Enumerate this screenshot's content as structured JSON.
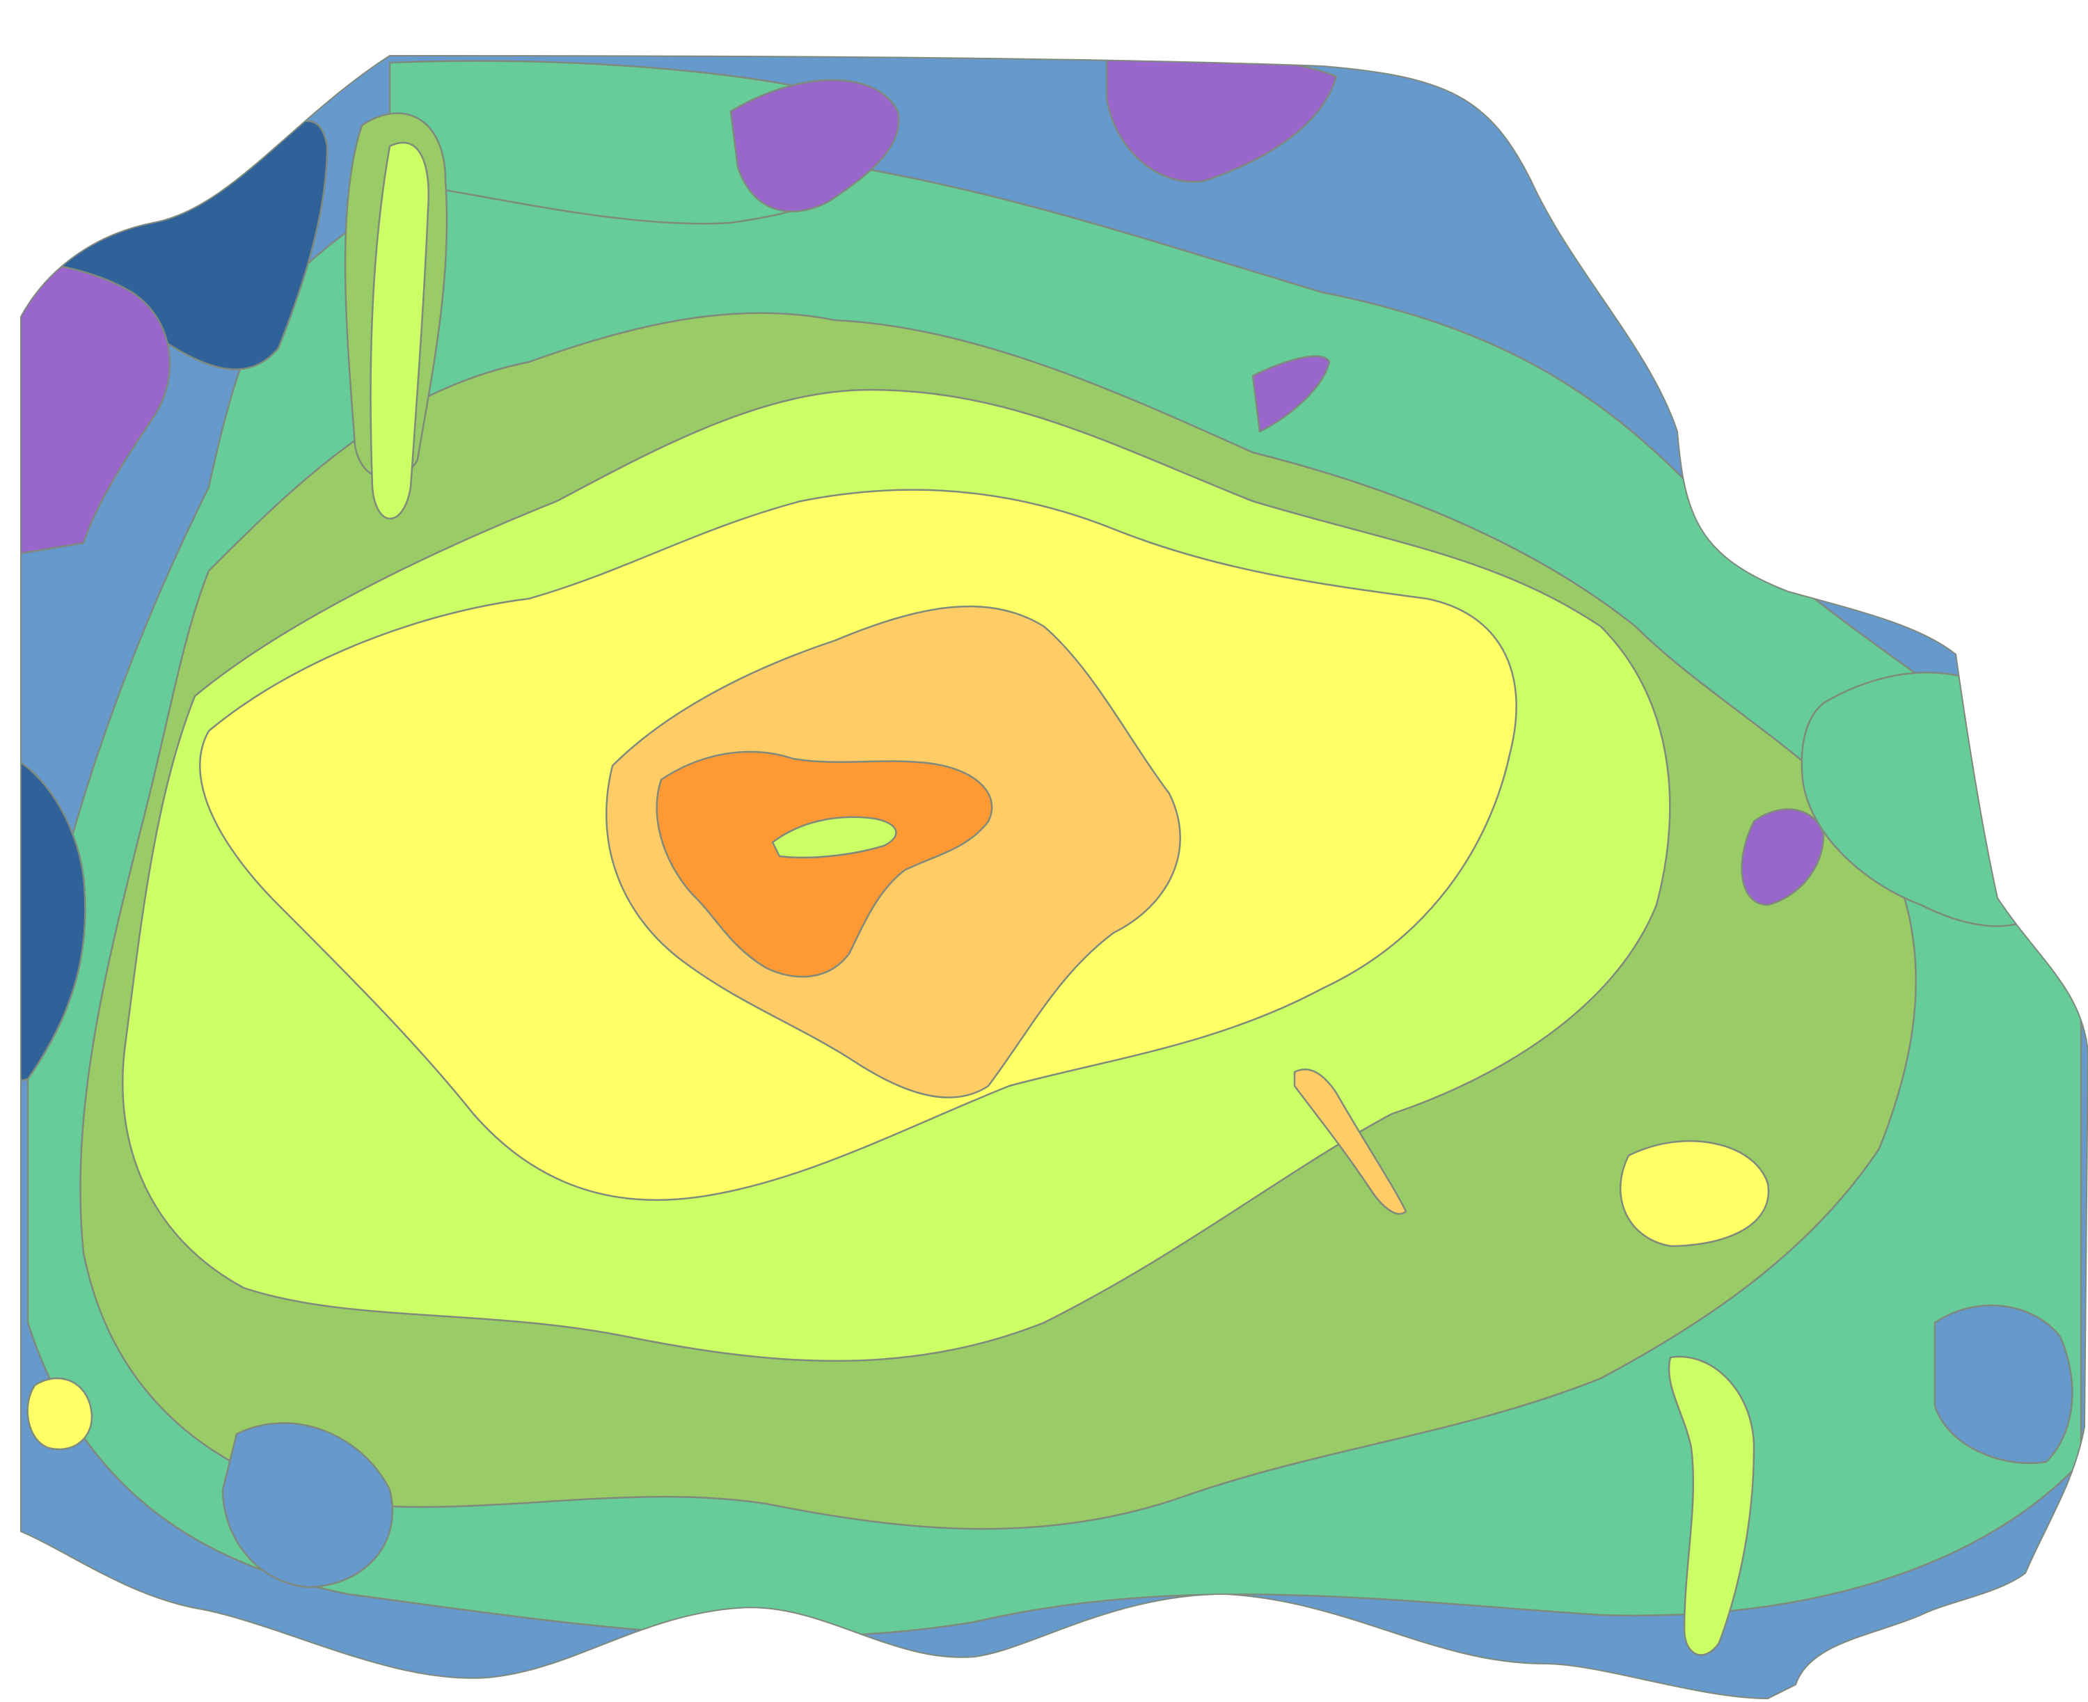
{
  "map": {
    "type": "isoline density map",
    "title": "",
    "legend": [],
    "palette": {
      "level_0": "#2f6299",
      "level_1": "#9966cc",
      "level_2": "#6699cc",
      "level_3": "#66cc99",
      "level_4": "#99cc66",
      "level_5": "#ccff66",
      "level_6": "#ffff66",
      "level_7": "#ffcc66",
      "level_8": "#ff9933"
    },
    "background": "#ffffff",
    "outline_color": "#7f8a7d"
  }
}
